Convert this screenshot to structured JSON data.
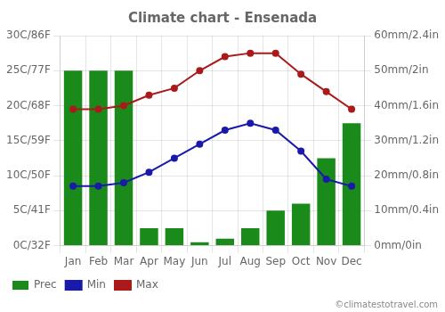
{
  "chart_data": {
    "type": "bar",
    "title": "Climate chart - Ensenada",
    "categories": [
      "Jan",
      "Feb",
      "Mar",
      "Apr",
      "May",
      "Jun",
      "Jul",
      "Aug",
      "Sep",
      "Oct",
      "Nov",
      "Dec"
    ],
    "series": [
      {
        "name": "Prec",
        "type": "bar",
        "axis": "y2",
        "color": "#1a8a1a",
        "values": [
          50,
          50,
          50,
          5,
          5,
          1,
          2,
          5,
          10,
          12,
          25,
          35
        ]
      },
      {
        "name": "Min",
        "type": "line",
        "color": "#1a1aaa",
        "marker": "circle",
        "line_style": "solid",
        "values": [
          8.5,
          8.5,
          9,
          10.5,
          12.5,
          14.5,
          16.5,
          17.5,
          16.5,
          13.5,
          9.5,
          8.5
        ]
      },
      {
        "name": "Max",
        "type": "line",
        "color": "#aa1a1a",
        "marker": "circle",
        "line_style": "solid",
        "values": [
          19.5,
          19.5,
          20,
          21.5,
          22.5,
          25,
          27,
          27.5,
          27.5,
          24.5,
          22,
          19.5
        ]
      }
    ],
    "ylim": [
      0,
      30
    ],
    "yticks": [
      {
        "value": 0,
        "label": "0C/32F"
      },
      {
        "value": 5,
        "label": "5C/41F"
      },
      {
        "value": 10,
        "label": "10C/50F"
      },
      {
        "value": 15,
        "label": "15C/59F"
      },
      {
        "value": 20,
        "label": "20C/68F"
      },
      {
        "value": 25,
        "label": "25C/77F"
      },
      {
        "value": 30,
        "label": "30C/86F"
      }
    ],
    "y2lim": [
      0,
      60
    ],
    "y2ticks": [
      {
        "value": 0,
        "label": "0mm/0in"
      },
      {
        "value": 10,
        "label": "10mm/0.4in"
      },
      {
        "value": 20,
        "label": "20mm/0.8in"
      },
      {
        "value": 30,
        "label": "30mm/1.2in"
      },
      {
        "value": 40,
        "label": "40mm/1.6in"
      },
      {
        "value": 50,
        "label": "50mm/2in"
      },
      {
        "value": 60,
        "label": "60mm/2.4in"
      }
    ],
    "grid": true,
    "legend": "bottom",
    "annotations": [
      "©climatestotravel.com"
    ]
  }
}
